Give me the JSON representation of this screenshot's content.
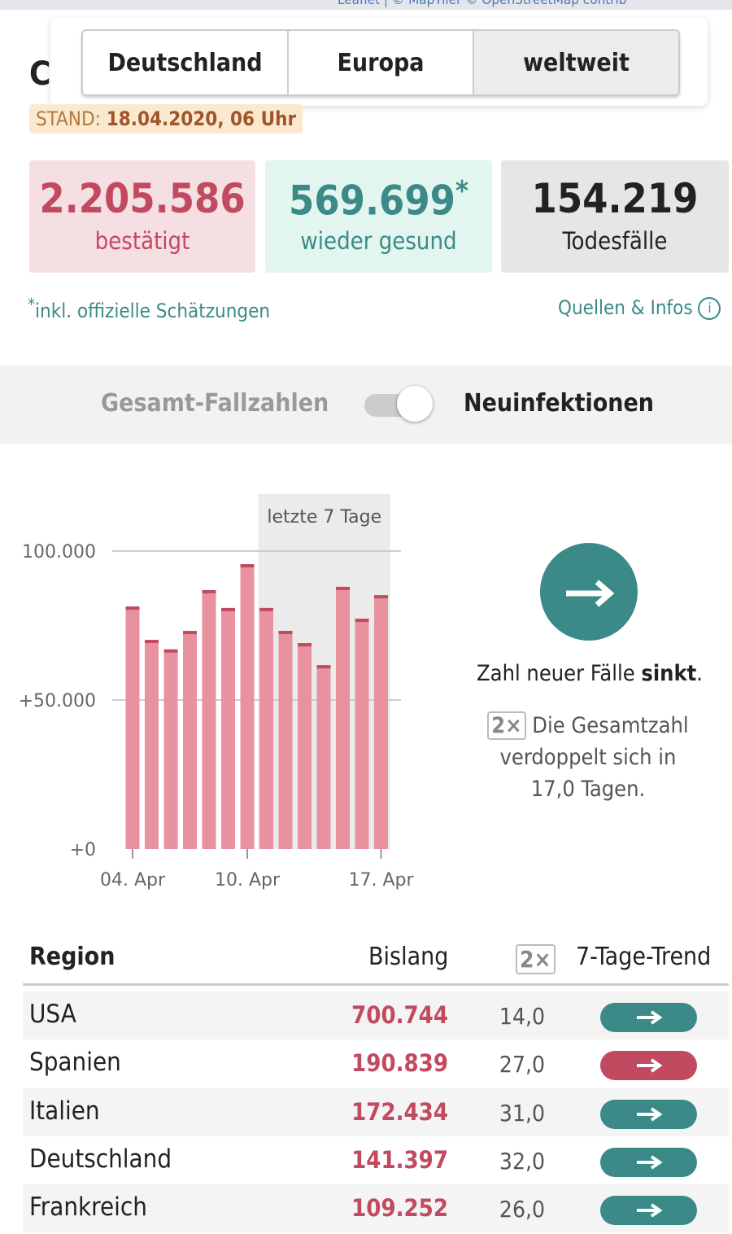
{
  "map_attribution": "Leaflet | © MapTiler © OpenStreetMap contrib",
  "heading": "C",
  "tabs": [
    "Deutschland",
    "Europa",
    "weltweit"
  ],
  "stand": {
    "label": "STAND:",
    "date": "18.04.2020, 06 Uhr"
  },
  "stats": [
    {
      "value": "2.205.586",
      "label": "bestätigt"
    },
    {
      "value": "569.699",
      "mark": "*",
      "label": "wieder gesund"
    },
    {
      "value": "154.219",
      "label": "Todesfälle"
    }
  ],
  "footnote": {
    "mark": "*",
    "text": "inkl. offizielle Schätzungen"
  },
  "sources": "Quellen & Infos",
  "toggle": {
    "left": "Gesamt-Fallzahlen",
    "right": "Neuinfektionen"
  },
  "chart_data": {
    "type": "bar",
    "annotation": "letzte 7 Tage",
    "categories": [
      "04. Apr",
      null,
      null,
      null,
      null,
      null,
      "10. Apr",
      null,
      null,
      null,
      null,
      null,
      null,
      "17. Apr"
    ],
    "values": [
      81400,
      70200,
      67000,
      73200,
      86900,
      80900,
      95600,
      80900,
      73200,
      69100,
      61700,
      88000,
      77300,
      85200
    ],
    "color": "#e8929f",
    "cap_color": "#c24a60",
    "ylim": [
      0,
      100000
    ],
    "yticks": [
      {
        "value": 0,
        "label": "+0"
      },
      {
        "value": 50000,
        "label": "+50.000"
      },
      {
        "value": 100000,
        "label": "100.000"
      }
    ],
    "grid": true
  },
  "trend": {
    "text": "Zahl neuer Fälle ",
    "strong": "sinkt",
    "end": ".",
    "badge": "2×",
    "doubling": "Die Gesamtzahl verdoppelt sich in 17,0 Tagen."
  },
  "table": {
    "header": [
      "Region",
      "Bislang",
      "2×",
      "7-Tage-Trend"
    ],
    "rows": [
      [
        "USA",
        "700.744",
        "14,0"
      ],
      [
        "Spanien",
        "190.839",
        "27,0"
      ],
      [
        "Italien",
        "172.434",
        "31,0"
      ],
      [
        "Deutschland",
        "141.397",
        "32,0"
      ],
      [
        "Frankreich",
        "109.252",
        "26,0"
      ]
    ],
    "trend_colors": [
      "#3b8a87",
      "#c24a60",
      "#3b8a87",
      "#3b8a87",
      "#3b8a87"
    ]
  }
}
